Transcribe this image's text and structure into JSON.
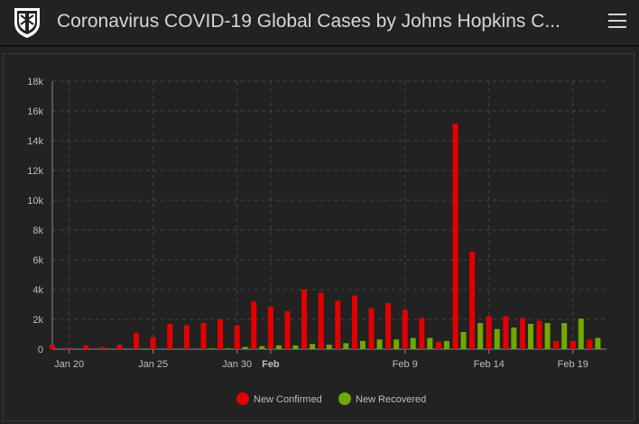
{
  "header": {
    "title": "Coronavirus COVID-19 Global Cases by Johns Hopkins C...",
    "logo_icon": "university-shield-icon",
    "menu_icon": "hamburger-menu-icon"
  },
  "colors": {
    "confirmed": "#e30000",
    "recovered": "#70a800",
    "axis_text": "#bdbdbd",
    "grid": "#444444"
  },
  "chart_data": {
    "type": "bar",
    "x_ticks": [
      {
        "label": "Jan 20",
        "date": "2020-01-20",
        "bold": false
      },
      {
        "label": "Jan 25",
        "date": "2020-01-25",
        "bold": false
      },
      {
        "label": "Jan 30",
        "date": "2020-01-30",
        "bold": false
      },
      {
        "label": "Feb",
        "date": "2020-02-01",
        "bold": true
      },
      {
        "label": "Feb 9",
        "date": "2020-02-09",
        "bold": false
      },
      {
        "label": "Feb 14",
        "date": "2020-02-14",
        "bold": false
      },
      {
        "label": "Feb 19",
        "date": "2020-02-19",
        "bold": false
      }
    ],
    "y_ticks": [
      "0",
      "2k",
      "4k",
      "6k",
      "8k",
      "10k",
      "12k",
      "14k",
      "16k",
      "18k"
    ],
    "ylim": [
      0,
      18000
    ],
    "grid": true,
    "legend_position": "bottom",
    "dates": [
      "2020-01-19",
      "2020-01-20",
      "2020-01-21",
      "2020-01-22",
      "2020-01-23",
      "2020-01-24",
      "2020-01-25",
      "2020-01-26",
      "2020-01-27",
      "2020-01-28",
      "2020-01-29",
      "2020-01-30",
      "2020-01-31",
      "2020-02-01",
      "2020-02-02",
      "2020-02-03",
      "2020-02-04",
      "2020-02-05",
      "2020-02-06",
      "2020-02-07",
      "2020-02-08",
      "2020-02-09",
      "2020-02-10",
      "2020-02-11",
      "2020-02-12",
      "2020-02-13",
      "2020-02-14",
      "2020-02-15",
      "2020-02-16",
      "2020-02-17",
      "2020-02-18",
      "2020-02-19",
      "2020-02-20"
    ],
    "series": [
      {
        "name": "New Confirmed",
        "values": [
          300,
          100,
          250,
          150,
          300,
          1100,
          800,
          1700,
          1600,
          1750,
          2000,
          1600,
          3200,
          2850,
          2550,
          4000,
          3800,
          3250,
          3600,
          2750,
          3100,
          2650,
          2100,
          500,
          15150,
          6550,
          2200,
          2200,
          2100,
          1900,
          550,
          550,
          650
        ]
      },
      {
        "name": "New Recovered",
        "values": [
          0,
          0,
          0,
          0,
          0,
          0,
          0,
          0,
          0,
          50,
          50,
          150,
          200,
          250,
          250,
          350,
          300,
          400,
          550,
          650,
          650,
          750,
          750,
          550,
          1150,
          1750,
          1350,
          1450,
          1700,
          1750,
          1750,
          2050,
          750
        ]
      }
    ]
  }
}
